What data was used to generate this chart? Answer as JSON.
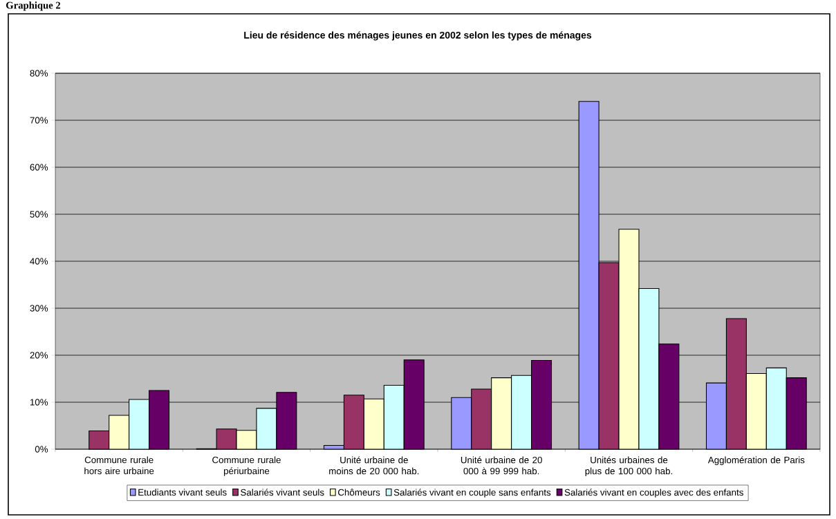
{
  "chart_data": {
    "type": "bar",
    "title": "Lieu de résidence des ménages jeunes en 2002 selon les types de ménages",
    "annotations": [
      "Graphique 2"
    ],
    "categories": [
      "Commune rurale hors aire urbaine",
      "Commune rurale périurbaine",
      "Unité urbaine de moins de 20 000 hab.",
      "Unité urbaine de 20 000 à 99 999 hab.",
      "Unités urbaines de plus de 100 000 hab.",
      "Agglomération de Paris"
    ],
    "series": [
      {
        "name": "Etudiants vivant seuls",
        "color": "#9999ff",
        "values": [
          null,
          0.1,
          0.8,
          11.0,
          74.0,
          14.1
        ]
      },
      {
        "name": "Salariés vivant seuls",
        "color": "#993366",
        "values": [
          3.9,
          4.3,
          11.5,
          12.8,
          39.7,
          27.8
        ]
      },
      {
        "name": "Chômeurs",
        "color": "#ffffcc",
        "values": [
          7.2,
          4.0,
          10.7,
          15.2,
          46.8,
          16.1
        ]
      },
      {
        "name": "Salariés vivant en couple sans enfants",
        "color": "#ccffff",
        "values": [
          10.6,
          8.7,
          13.6,
          15.7,
          34.2,
          17.3
        ]
      },
      {
        "name": "Salariés vivant en couples avec des enfants",
        "color": "#660066",
        "values": [
          12.5,
          12.1,
          19.0,
          18.9,
          22.4,
          15.2
        ]
      }
    ],
    "ylim": [
      0,
      80
    ],
    "yticks": [
      {
        "value": 0,
        "label": "0%"
      },
      {
        "value": 10,
        "label": "10%"
      },
      {
        "value": 20,
        "label": "20%"
      },
      {
        "value": 30,
        "label": "30%"
      },
      {
        "value": 40,
        "label": "40%"
      },
      {
        "value": 50,
        "label": "50%"
      },
      {
        "value": 60,
        "label": "60%"
      },
      {
        "value": 70,
        "label": "70%"
      },
      {
        "value": 80,
        "label": "80%"
      }
    ],
    "grid": "y",
    "legend": "bottom"
  }
}
